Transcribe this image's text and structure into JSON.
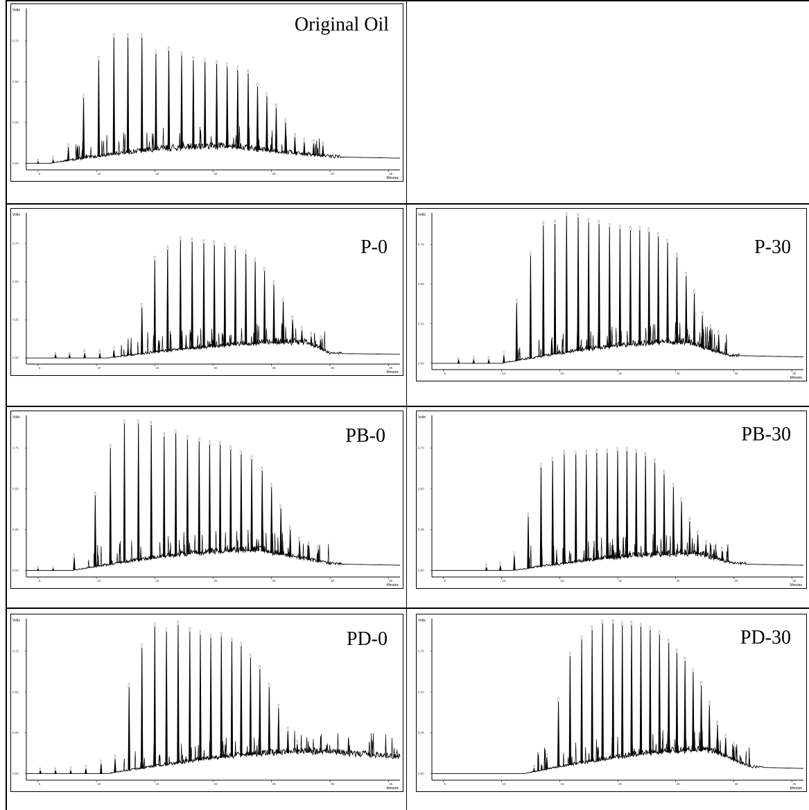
{
  "chart_data": [
    {
      "type": "line",
      "title": "Original Oil",
      "ylabel": "Volts",
      "xlabel": "Minutes",
      "yticks": [
        "0.00",
        "0.25",
        "0.50",
        "0.75"
      ],
      "xticks": [
        "5",
        "10",
        "15",
        "20",
        "25",
        "30",
        "35"
      ],
      "xlim": [
        4,
        36
      ],
      "ylim": [
        -0.04,
        0.95
      ],
      "peaks": [
        {
          "label": "C9",
          "x": 5.0,
          "y": 0.01
        },
        {
          "label": "C10",
          "x": 6.3,
          "y": 0.02
        },
        {
          "label": "C11",
          "x": 7.6,
          "y": 0.1
        },
        {
          "label": "C12",
          "x": 8.9,
          "y": 0.4
        },
        {
          "label": "C13",
          "x": 10.2,
          "y": 0.63
        },
        {
          "label": "C14",
          "x": 11.5,
          "y": 0.77
        },
        {
          "label": "C15",
          "x": 12.7,
          "y": 0.77
        },
        {
          "label": "C16",
          "x": 13.9,
          "y": 0.77
        },
        {
          "label": "C17",
          "x": 15.1,
          "y": 0.67
        },
        {
          "label": "C18",
          "x": 16.2,
          "y": 0.69
        },
        {
          "label": "C19",
          "x": 17.3,
          "y": 0.66
        },
        {
          "label": "C20",
          "x": 18.3,
          "y": 0.63
        },
        {
          "label": "C21",
          "x": 19.3,
          "y": 0.62
        },
        {
          "label": "C22",
          "x": 20.3,
          "y": 0.61
        },
        {
          "label": "C23",
          "x": 21.2,
          "y": 0.59
        },
        {
          "label": "C24",
          "x": 22.1,
          "y": 0.57
        },
        {
          "label": "C25",
          "x": 23.0,
          "y": 0.55
        },
        {
          "label": "C26",
          "x": 23.8,
          "y": 0.47
        },
        {
          "label": "C27",
          "x": 24.6,
          "y": 0.41
        },
        {
          "label": "C28",
          "x": 25.4,
          "y": 0.34
        },
        {
          "label": "C29",
          "x": 26.2,
          "y": 0.25
        },
        {
          "label": "C30",
          "x": 27.0,
          "y": 0.16
        },
        {
          "label": "C31",
          "x": 27.8,
          "y": 0.13
        },
        {
          "label": "C32",
          "x": 28.6,
          "y": 0.12
        },
        {
          "label": "C33",
          "x": 29.4,
          "y": 0.11
        }
      ],
      "hump": {
        "start": 6,
        "peak": 21,
        "end": 30,
        "max": 0.1,
        "tail": 0.04
      }
    },
    {
      "type": "line",
      "title": "P-0",
      "ylabel": "Volts",
      "xlabel": "Minutes",
      "yticks": [
        "0.00",
        "0.25",
        "0.50",
        "0.75"
      ],
      "xticks": [
        "5",
        "10",
        "15",
        "20",
        "25",
        "30",
        "35"
      ],
      "xlim": [
        4,
        36
      ],
      "ylim": [
        -0.04,
        0.95
      ],
      "peaks": [
        {
          "label": "C8",
          "x": 6.5,
          "y": 0.02
        },
        {
          "label": "C9",
          "x": 7.7,
          "y": 0.02
        },
        {
          "label": "C10",
          "x": 9.0,
          "y": 0.03
        },
        {
          "label": "C11",
          "x": 10.3,
          "y": 0.03
        },
        {
          "label": "C12",
          "x": 11.5,
          "y": 0.05
        },
        {
          "label": "C13",
          "x": 12.7,
          "y": 0.06
        },
        {
          "label": "C14",
          "x": 13.9,
          "y": 0.33
        },
        {
          "label": "C15",
          "x": 15.0,
          "y": 0.64
        },
        {
          "label": "C16",
          "x": 16.1,
          "y": 0.71
        },
        {
          "label": "C17",
          "x": 17.2,
          "y": 0.77
        },
        {
          "label": "C18",
          "x": 18.2,
          "y": 0.76
        },
        {
          "label": "C19",
          "x": 19.2,
          "y": 0.75
        },
        {
          "label": "C20",
          "x": 20.1,
          "y": 0.74
        },
        {
          "label": "C21",
          "x": 21.0,
          "y": 0.73
        },
        {
          "label": "C22",
          "x": 21.9,
          "y": 0.71
        },
        {
          "label": "C23",
          "x": 22.8,
          "y": 0.68
        },
        {
          "label": "C24",
          "x": 23.6,
          "y": 0.63
        },
        {
          "label": "C25",
          "x": 24.4,
          "y": 0.57
        },
        {
          "label": "C26",
          "x": 25.2,
          "y": 0.48
        },
        {
          "label": "C27",
          "x": 26.0,
          "y": 0.37
        },
        {
          "label": "C28",
          "x": 26.8,
          "y": 0.25
        },
        {
          "label": "C29",
          "x": 27.6,
          "y": 0.18
        },
        {
          "label": "C30",
          "x": 28.4,
          "y": 0.14
        },
        {
          "label": "C31",
          "x": 29.2,
          "y": 0.12
        }
      ],
      "hump": {
        "start": 11,
        "peak": 28,
        "end": 30,
        "max": 0.1,
        "tail": 0.03
      }
    },
    {
      "type": "line",
      "title": "P-30",
      "ylabel": "Volts",
      "xlabel": "Minutes",
      "yticks": [
        "0.00",
        "0.25",
        "0.50",
        "0.75"
      ],
      "xticks": [
        "5",
        "10",
        "15",
        "20",
        "25",
        "30",
        "35"
      ],
      "xlim": [
        4,
        36
      ],
      "ylim": [
        -0.04,
        0.95
      ],
      "peaks": [
        {
          "label": "C9",
          "x": 6.3,
          "y": 0.02
        },
        {
          "label": "C10",
          "x": 7.6,
          "y": 0.02
        },
        {
          "label": "C11",
          "x": 8.9,
          "y": 0.02
        },
        {
          "label": "C12",
          "x": 10.2,
          "y": 0.05
        },
        {
          "label": "C13",
          "x": 11.3,
          "y": 0.38
        },
        {
          "label": "C14",
          "x": 12.5,
          "y": 0.68
        },
        {
          "label": "C15",
          "x": 13.6,
          "y": 0.87
        },
        {
          "label": "C16",
          "x": 14.6,
          "y": 0.88
        },
        {
          "label": "C17",
          "x": 15.6,
          "y": 0.93
        },
        {
          "label": "C18",
          "x": 16.6,
          "y": 0.92
        },
        {
          "label": "C19",
          "x": 17.5,
          "y": 0.89
        },
        {
          "label": "C20",
          "x": 18.4,
          "y": 0.88
        },
        {
          "label": "C21",
          "x": 19.3,
          "y": 0.86
        },
        {
          "label": "C22",
          "x": 20.2,
          "y": 0.85
        },
        {
          "label": "C23",
          "x": 21.1,
          "y": 0.84
        },
        {
          "label": "C24",
          "x": 21.9,
          "y": 0.84
        },
        {
          "label": "C25",
          "x": 22.7,
          "y": 0.83
        },
        {
          "label": "C26",
          "x": 23.5,
          "y": 0.8
        },
        {
          "label": "C27",
          "x": 24.3,
          "y": 0.76
        },
        {
          "label": "C28",
          "x": 25.1,
          "y": 0.67
        },
        {
          "label": "C29",
          "x": 25.9,
          "y": 0.55
        },
        {
          "label": "C30",
          "x": 26.6,
          "y": 0.44
        },
        {
          "label": "C31",
          "x": 27.3,
          "y": 0.3
        },
        {
          "label": "C32",
          "x": 28.0,
          "y": 0.22
        },
        {
          "label": "C33",
          "x": 28.7,
          "y": 0.18
        }
      ],
      "hump": {
        "start": 10,
        "peak": 26,
        "end": 29.5,
        "max": 0.13,
        "tail": 0.05
      }
    },
    {
      "type": "line",
      "title": "PB-0",
      "ylabel": "Volts",
      "xlabel": "Minutes",
      "yticks": [
        "0.00",
        "0.25",
        "0.50",
        "0.75"
      ],
      "xticks": [
        "5",
        "10",
        "15",
        "20",
        "25",
        "30",
        "35"
      ],
      "xlim": [
        4,
        36
      ],
      "ylim": [
        -0.04,
        0.95
      ],
      "peaks": [
        {
          "label": "C8",
          "x": 5.0,
          "y": 0.01
        },
        {
          "label": "C9",
          "x": 6.3,
          "y": 0.01
        },
        {
          "label": "C10",
          "x": 8.1,
          "y": 0.08
        },
        {
          "label": "C11",
          "x": 9.9,
          "y": 0.46
        },
        {
          "label": "C12",
          "x": 11.2,
          "y": 0.75
        },
        {
          "label": "C13",
          "x": 12.4,
          "y": 0.9
        },
        {
          "label": "C14",
          "x": 13.6,
          "y": 0.9
        },
        {
          "label": "C15",
          "x": 14.7,
          "y": 0.89
        },
        {
          "label": "C16",
          "x": 15.8,
          "y": 0.82
        },
        {
          "label": "C17",
          "x": 16.8,
          "y": 0.84
        },
        {
          "label": "C18",
          "x": 17.8,
          "y": 0.8
        },
        {
          "label": "C19",
          "x": 18.8,
          "y": 0.79
        },
        {
          "label": "C20",
          "x": 19.7,
          "y": 0.77
        },
        {
          "label": "C21",
          "x": 20.6,
          "y": 0.77
        },
        {
          "label": "C22",
          "x": 21.5,
          "y": 0.74
        },
        {
          "label": "C23",
          "x": 22.4,
          "y": 0.71
        },
        {
          "label": "C24",
          "x": 23.3,
          "y": 0.68
        },
        {
          "label": "C25",
          "x": 24.2,
          "y": 0.61
        },
        {
          "label": "C26",
          "x": 25.0,
          "y": 0.51
        },
        {
          "label": "C27",
          "x": 25.8,
          "y": 0.38
        },
        {
          "label": "C28",
          "x": 26.6,
          "y": 0.25
        },
        {
          "label": "C29",
          "x": 27.4,
          "y": 0.18
        },
        {
          "label": "C30",
          "x": 28.2,
          "y": 0.15
        },
        {
          "label": "C31",
          "x": 29.0,
          "y": 0.13
        }
      ],
      "hump": {
        "start": 8,
        "peak": 24,
        "end": 30,
        "max": 0.12,
        "tail": 0.04
      }
    },
    {
      "type": "line",
      "title": "PB-30",
      "ylabel": "Volts",
      "xlabel": "Minutes",
      "yticks": [
        "0.00",
        "0.25",
        "0.50",
        "0.75"
      ],
      "xticks": [
        "5",
        "10",
        "15",
        "20",
        "25",
        "30",
        "35"
      ],
      "xlim": [
        4,
        36
      ],
      "ylim": [
        -0.04,
        0.95
      ],
      "peaks": [
        {
          "label": "C10",
          "x": 8.7,
          "y": 0.02
        },
        {
          "label": "C11",
          "x": 9.9,
          "y": 0.03
        },
        {
          "label": "C12",
          "x": 11.1,
          "y": 0.09
        },
        {
          "label": "C13",
          "x": 12.3,
          "y": 0.33
        },
        {
          "label": "C14",
          "x": 13.4,
          "y": 0.63
        },
        {
          "label": "C15",
          "x": 14.4,
          "y": 0.67
        },
        {
          "label": "C16",
          "x": 15.4,
          "y": 0.71
        },
        {
          "label": "C17",
          "x": 16.4,
          "y": 0.71
        },
        {
          "label": "C18",
          "x": 17.3,
          "y": 0.71
        },
        {
          "label": "C19",
          "x": 18.2,
          "y": 0.72
        },
        {
          "label": "C20",
          "x": 19.1,
          "y": 0.72
        },
        {
          "label": "C21",
          "x": 20.0,
          "y": 0.73
        },
        {
          "label": "C22",
          "x": 20.8,
          "y": 0.73
        },
        {
          "label": "C23",
          "x": 21.6,
          "y": 0.72
        },
        {
          "label": "C24",
          "x": 22.4,
          "y": 0.7
        },
        {
          "label": "C25",
          "x": 23.2,
          "y": 0.66
        },
        {
          "label": "C26",
          "x": 24.0,
          "y": 0.59
        },
        {
          "label": "C27",
          "x": 24.8,
          "y": 0.51
        },
        {
          "label": "C28",
          "x": 25.5,
          "y": 0.42
        },
        {
          "label": "C29",
          "x": 26.2,
          "y": 0.3
        },
        {
          "label": "C30",
          "x": 26.9,
          "y": 0.22
        },
        {
          "label": "C31",
          "x": 27.6,
          "y": 0.16
        },
        {
          "label": "C32",
          "x": 28.3,
          "y": 0.13
        },
        {
          "label": "C33",
          "x": 29.0,
          "y": 0.12
        }
      ],
      "hump": {
        "start": 11,
        "peak": 27,
        "end": 30,
        "max": 0.1,
        "tail": 0.04
      }
    },
    {
      "type": "line",
      "title": "PD-0",
      "ylabel": "Volts",
      "xlabel": "Minutes",
      "yticks": [
        "0.00",
        "0.25",
        "0.50",
        "0.75"
      ],
      "xticks": [
        "5",
        "10",
        "15",
        "20",
        "25",
        "30",
        "35"
      ],
      "xlim": [
        4,
        36
      ],
      "ylim": [
        -0.04,
        0.95
      ],
      "peaks": [
        {
          "label": "C8",
          "x": 5.2,
          "y": 0.02
        },
        {
          "label": "C9",
          "x": 6.5,
          "y": 0.02
        },
        {
          "label": "C10",
          "x": 7.8,
          "y": 0.02
        },
        {
          "label": "C11",
          "x": 9.1,
          "y": 0.03
        },
        {
          "label": "C12",
          "x": 10.4,
          "y": 0.06
        },
        {
          "label": "C13",
          "x": 11.6,
          "y": 0.09
        },
        {
          "label": "C14",
          "x": 12.8,
          "y": 0.53
        },
        {
          "label": "C15",
          "x": 13.9,
          "y": 0.77
        },
        {
          "label": "C16",
          "x": 15.0,
          "y": 0.9
        },
        {
          "label": "C17",
          "x": 16.0,
          "y": 0.87
        },
        {
          "label": "C18",
          "x": 17.0,
          "y": 0.91
        },
        {
          "label": "C19",
          "x": 18.0,
          "y": 0.87
        },
        {
          "label": "C20",
          "x": 18.9,
          "y": 0.85
        },
        {
          "label": "C21",
          "x": 19.8,
          "y": 0.83
        },
        {
          "label": "C22",
          "x": 20.7,
          "y": 0.84
        },
        {
          "label": "C23",
          "x": 21.6,
          "y": 0.81
        },
        {
          "label": "C24",
          "x": 22.4,
          "y": 0.78
        },
        {
          "label": "C25",
          "x": 23.2,
          "y": 0.71
        },
        {
          "label": "C26",
          "x": 24.0,
          "y": 0.64
        },
        {
          "label": "C27",
          "x": 24.8,
          "y": 0.53
        },
        {
          "label": "C28",
          "x": 25.6,
          "y": 0.4
        },
        {
          "label": "C29",
          "x": 26.4,
          "y": 0.26
        },
        {
          "label": "C30",
          "x": 27.2,
          "y": 0.18
        },
        {
          "label": "C31",
          "x": 28.0,
          "y": 0.15
        },
        {
          "label": "C32",
          "x": 28.8,
          "y": 0.13
        }
      ],
      "hump": {
        "start": 11,
        "peak": 29,
        "end": 36,
        "max": 0.13,
        "tail": 0.1
      }
    },
    {
      "type": "line",
      "title": "PD-30",
      "ylabel": "Volts",
      "xlabel": "Minutes",
      "yticks": [
        "0.00",
        "0.25",
        "0.50",
        "0.75"
      ],
      "xticks": [
        "5",
        "10",
        "15",
        "20",
        "25",
        "30",
        "35"
      ],
      "xlim": [
        4,
        36
      ],
      "ylim": [
        -0.04,
        0.95
      ],
      "peaks": [
        {
          "label": "C11",
          "x": 12.8,
          "y": 0.03
        },
        {
          "label": "C12",
          "x": 13.9,
          "y": 0.1
        },
        {
          "label": "C13",
          "x": 14.9,
          "y": 0.44
        },
        {
          "label": "C14",
          "x": 15.9,
          "y": 0.72
        },
        {
          "label": "C15",
          "x": 16.9,
          "y": 0.82
        },
        {
          "label": "C16",
          "x": 17.8,
          "y": 0.88
        },
        {
          "label": "C17",
          "x": 18.7,
          "y": 0.92
        },
        {
          "label": "C18",
          "x": 19.6,
          "y": 0.92
        },
        {
          "label": "C19",
          "x": 20.4,
          "y": 0.91
        },
        {
          "label": "C20",
          "x": 21.2,
          "y": 0.91
        },
        {
          "label": "C21",
          "x": 22.0,
          "y": 0.9
        },
        {
          "label": "C22",
          "x": 22.8,
          "y": 0.88
        },
        {
          "label": "C23",
          "x": 23.6,
          "y": 0.85
        },
        {
          "label": "C24",
          "x": 24.4,
          "y": 0.8
        },
        {
          "label": "C25",
          "x": 25.1,
          "y": 0.74
        },
        {
          "label": "C26",
          "x": 25.8,
          "y": 0.69
        },
        {
          "label": "C27",
          "x": 26.5,
          "y": 0.62
        },
        {
          "label": "C28",
          "x": 27.2,
          "y": 0.54
        },
        {
          "label": "C29",
          "x": 27.9,
          "y": 0.42
        },
        {
          "label": "C30",
          "x": 28.6,
          "y": 0.3
        },
        {
          "label": "C31",
          "x": 29.3,
          "y": 0.22
        },
        {
          "label": "C32",
          "x": 30.0,
          "y": 0.17
        }
      ],
      "hump": {
        "start": 12,
        "peak": 28,
        "end": 31.5,
        "max": 0.14,
        "tail": 0.04
      }
    }
  ]
}
